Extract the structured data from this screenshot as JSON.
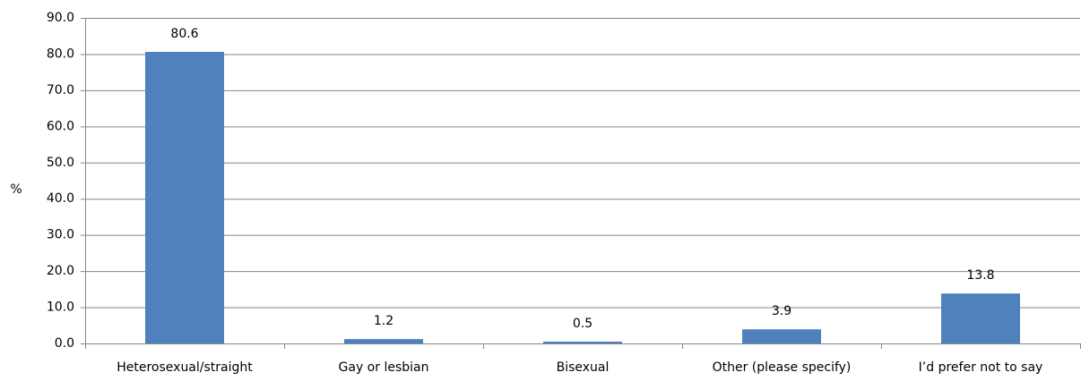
{
  "chart_data": {
    "type": "bar",
    "y_label": "%",
    "categories": [
      "Heterosexual/straight",
      "Gay or lesbian",
      "Bisexual",
      "Other (please specify)",
      "I’d prefer not to say"
    ],
    "values": [
      80.6,
      1.2,
      0.5,
      3.9,
      13.8
    ],
    "color": "#4f81bd",
    "ylim": [
      0,
      90
    ],
    "yticks": [
      {
        "value": 0,
        "label": "0.0"
      },
      {
        "value": 10,
        "label": "10.0"
      },
      {
        "value": 20,
        "label": "20.0"
      },
      {
        "value": 30,
        "label": "30.0"
      },
      {
        "value": 40,
        "label": "40.0"
      },
      {
        "value": 50,
        "label": "50.0"
      },
      {
        "value": 60,
        "label": "60.0"
      },
      {
        "value": 70,
        "label": "70.0"
      },
      {
        "value": 80,
        "label": "80.0"
      },
      {
        "value": 90,
        "label": "90.0"
      }
    ],
    "grid": true
  }
}
